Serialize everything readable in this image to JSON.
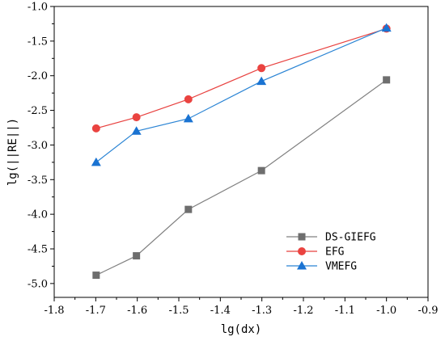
{
  "chart_data": {
    "type": "line",
    "xlabel": "lg(dx)",
    "ylabel": "lg(||RE||)",
    "xlim": [
      -1.8,
      -0.9
    ],
    "ylim": [
      -5.2,
      -1.0
    ],
    "xticks": [
      -1.8,
      -1.7,
      -1.6,
      -1.5,
      -1.4,
      -1.3,
      -1.2,
      -1.1,
      -1.0,
      -0.9
    ],
    "xtick_labels": [
      "-1.8",
      "-1.7",
      "-1.6",
      "-1.5",
      "-1.4",
      "-1.3",
      "-1.2",
      "-1.1",
      "-1.0",
      "-0.9"
    ],
    "yticks": [
      -5.0,
      -4.5,
      -4.0,
      -3.5,
      -3.0,
      -2.5,
      -2.0,
      -1.5,
      -1.0
    ],
    "ytick_labels": [
      "-5.0",
      "-4.5",
      "-4.0",
      "-3.5",
      "-3.0",
      "-2.5",
      "-2.0",
      "-1.5",
      "-1.0"
    ],
    "grid": false,
    "legend_position": "bottom-right",
    "x": [
      -1.699,
      -1.602,
      -1.477,
      -1.301,
      -1.0
    ],
    "series": [
      {
        "name": "DS-GIEFG",
        "marker": "square",
        "color": "#808080",
        "marker_color": "#6e6e6e",
        "values": [
          -4.88,
          -4.6,
          -3.93,
          -3.37,
          -2.06
        ]
      },
      {
        "name": "EFG",
        "marker": "circle",
        "color": "#e8413f",
        "marker_color": "#ea4340",
        "values": [
          -2.76,
          -2.6,
          -2.34,
          -1.89,
          -1.32
        ]
      },
      {
        "name": "VMEFG",
        "marker": "triangle",
        "color": "#2a84d4",
        "marker_color": "#1a73d2",
        "values": [
          -3.25,
          -2.8,
          -2.62,
          -2.08,
          -1.31
        ]
      }
    ]
  }
}
